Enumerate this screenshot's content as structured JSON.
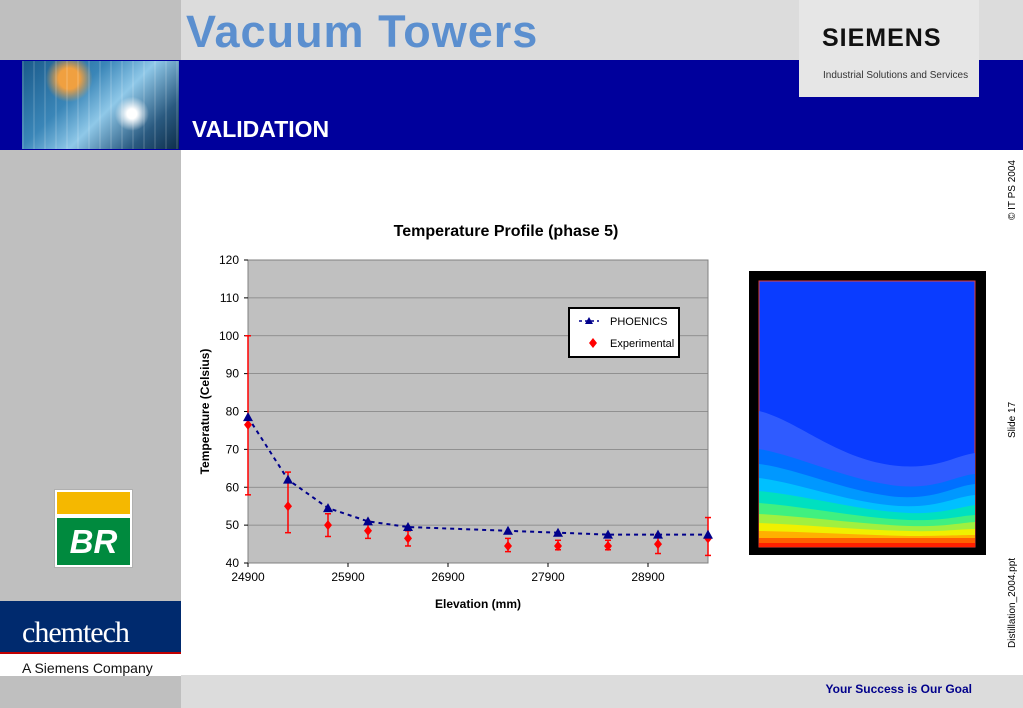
{
  "header": {
    "title": "Vacuum Towers",
    "section": "VALIDATION"
  },
  "brand": {
    "logo_text": "SIEMENS",
    "subtitle": "Industrial Solutions and Services"
  },
  "side_labels": {
    "copyright": "© IT PS 2004",
    "slide": "Slide 17",
    "file": "Distillation_2004.ppt"
  },
  "client_logo": {
    "text": "BR"
  },
  "company": {
    "name": "chemtech",
    "tagline": "A Siemens Company"
  },
  "footer": {
    "slogan": "Your Success is Our Goal"
  },
  "colors": {
    "title": "#5b8fcf",
    "band": "#00009c",
    "phoenics": "#00008b",
    "experimental": "#ff0000",
    "plot_bg": "#c0c0c0"
  },
  "chart_data": {
    "type": "line",
    "title": "Temperature Profile (phase 5)",
    "xlabel": "Elevation (mm)",
    "ylabel": "Temperature (Celsius)",
    "xlim": [
      24900,
      29500
    ],
    "ylim": [
      40,
      120
    ],
    "x_ticks": [
      24900,
      25900,
      26900,
      27900,
      28900
    ],
    "y_ticks": [
      40,
      50,
      60,
      70,
      80,
      90,
      100,
      110,
      120
    ],
    "grid": true,
    "legend_position": "top-right",
    "series": [
      {
        "name": "PHOENICS",
        "style": "dashed-line-triangle",
        "x": [
          24900,
          25300,
          25700,
          26100,
          26500,
          27500,
          28000,
          28500,
          29000,
          29500
        ],
        "y": [
          78.5,
          62,
          54.5,
          51,
          49.5,
          48.5,
          48,
          47.5,
          47.5,
          47.5
        ]
      },
      {
        "name": "Experimental",
        "style": "diamond-errorbar",
        "x": [
          24900,
          25300,
          25700,
          26100,
          26500,
          27500,
          28000,
          28500,
          29000,
          29500
        ],
        "y": [
          76.5,
          55,
          50,
          48.5,
          46.5,
          44.5,
          44.5,
          44.5,
          45,
          46.5
        ],
        "err_low": [
          58,
          48,
          47,
          46.5,
          44.5,
          43,
          43.5,
          43.5,
          42.5,
          42
        ],
        "err_high": [
          100,
          64,
          53,
          51,
          48.5,
          46.5,
          46,
          46,
          47.5,
          52
        ]
      }
    ]
  }
}
